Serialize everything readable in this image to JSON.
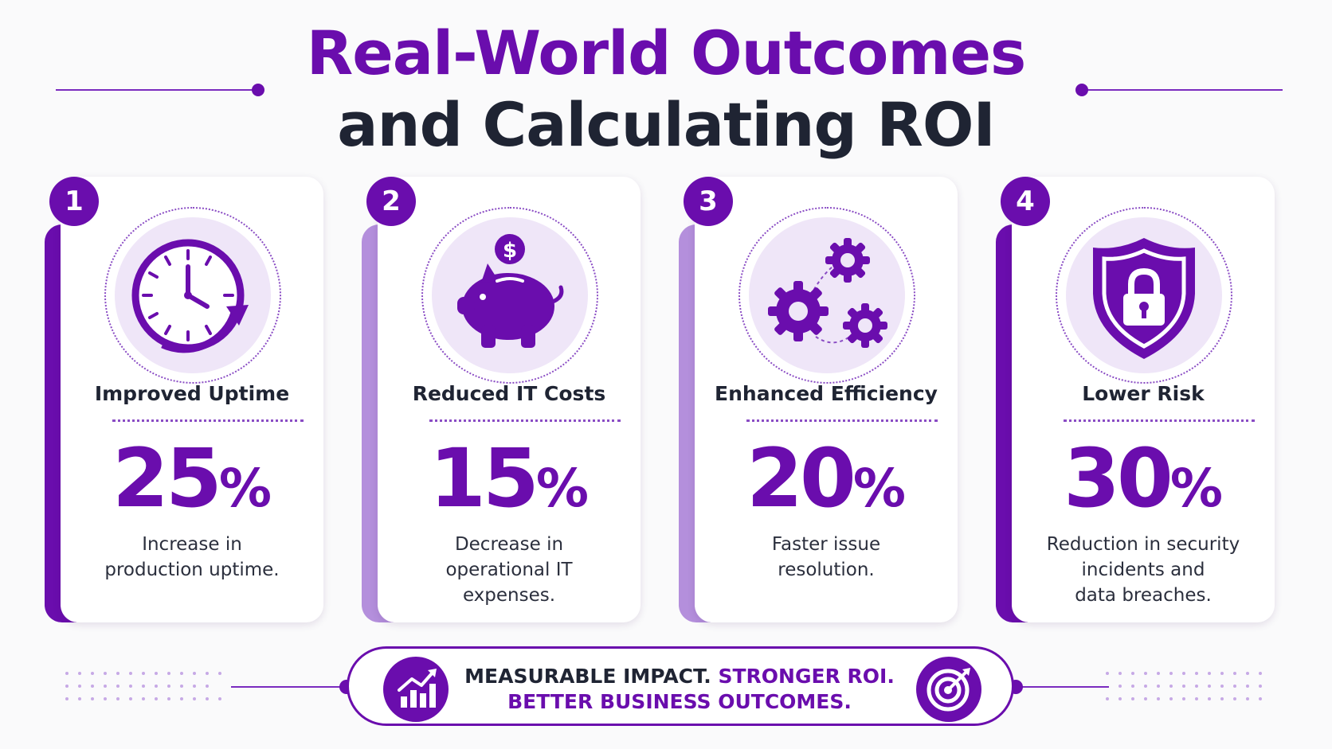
{
  "header": {
    "title_line1": "Real-World Outcomes",
    "title_line2": "and Calculating ROI"
  },
  "cards": [
    {
      "number": "1",
      "icon": "clock-refresh-icon",
      "title": "Improved Uptime",
      "value": "25",
      "unit": "%",
      "description_lines": [
        "Increase in",
        "production uptime."
      ],
      "accent": "#6a0dad"
    },
    {
      "number": "2",
      "icon": "piggy-bank-icon",
      "title": "Reduced IT Costs",
      "value": "15",
      "unit": "%",
      "description_lines": [
        "Decrease in",
        "operational IT expenses."
      ],
      "accent": "#b48fdc"
    },
    {
      "number": "3",
      "icon": "gears-icon",
      "title": "Enhanced Efficiency",
      "value": "20",
      "unit": "%",
      "description_lines": [
        "Faster issue",
        "resolution."
      ],
      "accent": "#b48fdc"
    },
    {
      "number": "4",
      "icon": "shield-lock-icon",
      "title": "Lower Risk",
      "value": "30",
      "unit": "%",
      "description_lines": [
        "Reduction in security",
        "incidents and",
        "data breaches."
      ],
      "accent": "#6a0dad"
    }
  ],
  "banner": {
    "line1_dark": "MEASURABLE IMPACT.",
    "line1_purple": "STRONGER ROI.",
    "line2": "BETTER BUSINESS OUTCOMES.",
    "left_icon": "growth-chart-icon",
    "right_icon": "target-icon"
  },
  "colors": {
    "primary": "#6a0dad",
    "light_accent": "#b48fdc",
    "dark_text": "#1f2433",
    "icon_bg": "#efe6f8"
  }
}
